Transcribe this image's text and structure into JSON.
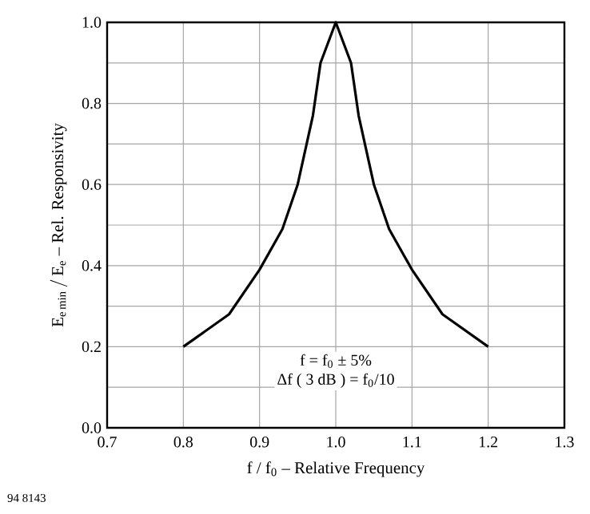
{
  "chart_data": {
    "type": "line",
    "xlabel": "f / f$_{0}$ – Relative Frequency",
    "ylabel": "\\mathrm{E_{e\\,min}\\,/\\,E_{e}}\\textrm{ – Rel. Responsivity}",
    "x": [
      0.8,
      0.86,
      0.9,
      0.93,
      0.95,
      0.97,
      0.98,
      1.0,
      1.02,
      1.03,
      1.05,
      1.07,
      1.1,
      1.14,
      1.2
    ],
    "series": [
      {
        "color": "#000000",
        "values": [
          0.2,
          0.28,
          0.39,
          0.49,
          0.6,
          0.77,
          0.9,
          1.0,
          0.9,
          0.77,
          0.6,
          0.49,
          0.39,
          0.28,
          0.2
        ]
      }
    ],
    "xlim": [
      0.7,
      1.3
    ],
    "xticks": [
      {
        "value": 0.7,
        "label": "0.7"
      },
      {
        "value": 0.8,
        "label": "0.8"
      },
      {
        "value": 0.9,
        "label": "0.9"
      },
      {
        "value": 1.0,
        "label": "1.0"
      },
      {
        "value": 1.1,
        "label": "1.1"
      },
      {
        "value": 1.2,
        "label": "1.2"
      },
      {
        "value": 1.3,
        "label": "1.3"
      }
    ],
    "ylim": [
      0,
      1.0
    ],
    "yticks": [
      {
        "value": 0,
        "label": "0.0"
      },
      {
        "value": 0.1,
        "label": null
      },
      {
        "value": 0.2,
        "label": "0.2"
      },
      {
        "value": 0.3,
        "label": null
      },
      {
        "value": 0.4,
        "label": "0.4"
      },
      {
        "value": 0.5,
        "label": null
      },
      {
        "value": 0.6,
        "label": "0.6"
      },
      {
        "value": 0.7,
        "label": null
      },
      {
        "value": 0.8,
        "label": "0.8"
      },
      {
        "value": 0.9,
        "label": null
      },
      {
        "value": 1.0,
        "label": "1.0"
      }
    ],
    "grid": true,
    "line_style": "solid",
    "annotations": [
      "f = f$_{0}$ ± 5%",
      "Δf ( 3 dB ) = f$_{0}$/10",
      "94 8143"
    ]
  }
}
